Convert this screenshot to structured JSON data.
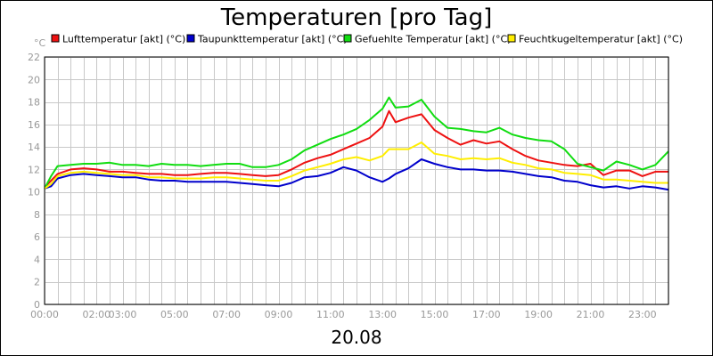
{
  "chart_data": {
    "type": "line",
    "title": "Temperaturen [pro Tag]",
    "xlabel": "20.08",
    "ylabel": "",
    "y_unit": "°C",
    "ylim": [
      0,
      22
    ],
    "yticks": [
      0,
      2,
      4,
      6,
      8,
      10,
      12,
      14,
      16,
      18,
      20,
      22
    ],
    "xlim": [
      0,
      24
    ],
    "xticks": [
      {
        "label": "00:00",
        "value": 0
      },
      {
        "label": "02:00",
        "value": 2
      },
      {
        "label": "03:00",
        "value": 3
      },
      {
        "label": "05:00",
        "value": 5
      },
      {
        "label": "07:00",
        "value": 7
      },
      {
        "label": "09:00",
        "value": 9
      },
      {
        "label": "11:00",
        "value": 11
      },
      {
        "label": "13:00",
        "value": 13
      },
      {
        "label": "15:00",
        "value": 15
      },
      {
        "label": "17:00",
        "value": 17
      },
      {
        "label": "19:00",
        "value": 19
      },
      {
        "label": "21:00",
        "value": 21
      },
      {
        "label": "23:00",
        "value": 23
      }
    ],
    "grid": true,
    "legend_position": "top",
    "x": [
      0,
      0.25,
      0.5,
      1,
      1.5,
      2,
      2.5,
      3,
      3.5,
      4,
      4.5,
      5,
      5.5,
      6,
      6.5,
      7,
      7.5,
      8,
      8.5,
      9,
      9.5,
      10,
      10.5,
      11,
      11.5,
      12,
      12.5,
      13,
      13.25,
      13.5,
      14,
      14.5,
      15,
      15.5,
      16,
      16.5,
      17,
      17.5,
      18,
      18.5,
      19,
      19.5,
      20,
      20.5,
      21,
      21.5,
      22,
      22.5,
      23,
      23.5,
      24
    ],
    "series": [
      {
        "name": "Lufttemperatur [akt] (°C)",
        "color": "#ee1111",
        "values": [
          10.4,
          11.0,
          11.6,
          12.0,
          12.1,
          12.0,
          11.8,
          11.8,
          11.7,
          11.6,
          11.6,
          11.5,
          11.5,
          11.6,
          11.7,
          11.7,
          11.6,
          11.5,
          11.4,
          11.5,
          12.0,
          12.6,
          13.0,
          13.3,
          13.8,
          14.3,
          14.8,
          15.8,
          17.2,
          16.2,
          16.6,
          16.9,
          15.5,
          14.8,
          14.2,
          14.6,
          14.3,
          14.5,
          13.8,
          13.2,
          12.8,
          12.6,
          12.4,
          12.3,
          12.5,
          11.5,
          11.9,
          11.9,
          11.4,
          11.8,
          11.8
        ]
      },
      {
        "name": "Taupunkttemperatur [akt] (°C)",
        "color": "#0000cc",
        "values": [
          10.3,
          10.5,
          11.2,
          11.5,
          11.6,
          11.5,
          11.4,
          11.3,
          11.3,
          11.1,
          11.0,
          11.0,
          10.9,
          10.9,
          10.9,
          10.9,
          10.8,
          10.7,
          10.6,
          10.5,
          10.8,
          11.3,
          11.4,
          11.7,
          12.2,
          11.9,
          11.3,
          10.9,
          11.2,
          11.6,
          12.1,
          12.9,
          12.5,
          12.2,
          12.0,
          12.0,
          11.9,
          11.9,
          11.8,
          11.6,
          11.4,
          11.3,
          11.0,
          10.9,
          10.6,
          10.4,
          10.5,
          10.3,
          10.5,
          10.4,
          10.2
        ]
      },
      {
        "name": "Gefuehlte Temperatur [akt] (°C)",
        "color": "#11dd11",
        "values": [
          10.3,
          11.4,
          12.3,
          12.4,
          12.5,
          12.5,
          12.6,
          12.4,
          12.4,
          12.3,
          12.5,
          12.4,
          12.4,
          12.3,
          12.4,
          12.5,
          12.5,
          12.2,
          12.2,
          12.4,
          12.9,
          13.7,
          14.2,
          14.7,
          15.1,
          15.6,
          16.4,
          17.4,
          18.4,
          17.5,
          17.6,
          18.2,
          16.7,
          15.7,
          15.6,
          15.4,
          15.3,
          15.7,
          15.1,
          14.8,
          14.6,
          14.5,
          13.8,
          12.5,
          12.2,
          11.9,
          12.7,
          12.4,
          12.0,
          12.4,
          13.6
        ]
      },
      {
        "name": "Feuchtkugeltemperatur [akt] (°C)",
        "color": "#ffee00",
        "values": [
          10.3,
          10.7,
          11.4,
          11.7,
          11.8,
          11.7,
          11.6,
          11.5,
          11.5,
          11.3,
          11.3,
          11.2,
          11.2,
          11.2,
          11.3,
          11.3,
          11.2,
          11.1,
          11.0,
          11.0,
          11.4,
          11.9,
          12.2,
          12.5,
          12.9,
          13.1,
          12.8,
          13.2,
          13.8,
          13.8,
          13.8,
          14.4,
          13.4,
          13.2,
          12.9,
          13.0,
          12.9,
          13.0,
          12.6,
          12.4,
          12.1,
          12.0,
          11.7,
          11.6,
          11.5,
          11.1,
          11.1,
          11.0,
          10.9,
          10.8,
          10.8
        ]
      }
    ]
  }
}
